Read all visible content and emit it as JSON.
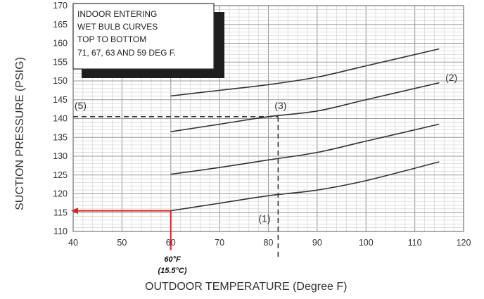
{
  "chart_data": {
    "type": "line",
    "xlabel": "OUTDOOR TEMPERATURE (Degree F)",
    "ylabel": "SUCTION PRESSURE (PSIG)",
    "xlim": [
      40,
      120
    ],
    "ylim": [
      110,
      170
    ],
    "x_ticks": [
      40,
      50,
      60,
      70,
      80,
      90,
      100,
      110,
      120
    ],
    "y_ticks": [
      110,
      115,
      120,
      125,
      130,
      135,
      140,
      145,
      150,
      155,
      160,
      165,
      170
    ],
    "grid": true,
    "legend_box": {
      "placement": "top-left",
      "lines": [
        "INDOOR ENTERING",
        "WET BULB CURVES",
        "TOP TO BOTTOM",
        "71, 67, 63 AND 59 DEG F."
      ]
    },
    "series": [
      {
        "x": [
          60,
          70,
          80,
          90,
          100,
          115
        ],
        "y": [
          146,
          147.5,
          149,
          151,
          154,
          158.5
        ]
      },
      {
        "x": [
          60,
          70,
          80,
          90,
          100,
          115
        ],
        "y": [
          136.5,
          138.5,
          140.5,
          142,
          145,
          149.5
        ]
      },
      {
        "x": [
          60,
          70,
          80,
          90,
          100,
          115
        ],
        "y": [
          125.2,
          127,
          129,
          131,
          134,
          138.5
        ]
      },
      {
        "x": [
          60,
          70,
          80,
          90,
          100,
          115
        ],
        "y": [
          115.5,
          117.5,
          119.5,
          121,
          123.5,
          128.5
        ]
      }
    ],
    "reference_lines": [
      {
        "type": "horizontal",
        "y": 140.5,
        "x_from": 40,
        "x_to": 82,
        "style": "dashed",
        "color": "#333333"
      },
      {
        "type": "vertical",
        "x": 82,
        "y_from": 140.5,
        "y_to": 103,
        "style": "dashed",
        "color": "#333333"
      },
      {
        "type": "horizontal",
        "y": 115.5,
        "x_from": 40,
        "x_to": 60,
        "style": "solid",
        "color": "#e02020"
      },
      {
        "type": "vertical",
        "x": 60,
        "y_from": 115.5,
        "y_to": 105,
        "style": "solid",
        "color": "#e02020"
      }
    ],
    "annotations": [
      {
        "text": "(1)",
        "x": 79.2,
        "y": 112.5
      },
      {
        "text": "(2)",
        "x": 117.5,
        "y": 150
      },
      {
        "text": "(3)",
        "x": 82.5,
        "y": 142.5
      },
      {
        "text": "(5)",
        "x": 41.5,
        "y": 142.5
      }
    ],
    "marker_label": {
      "lines": [
        "60°F",
        "(15.5°C)"
      ],
      "x": 60
    }
  }
}
